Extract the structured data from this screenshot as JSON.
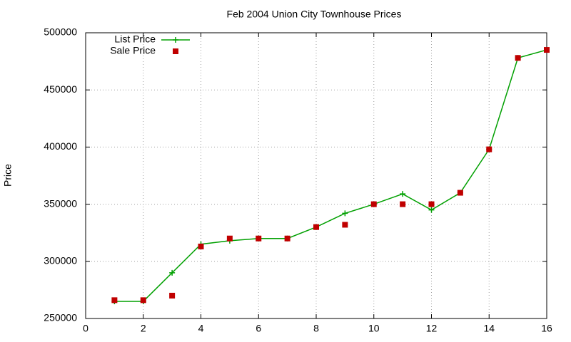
{
  "chart_data": {
    "type": "line",
    "title": "Feb 2004 Union City Townhouse Prices",
    "y_label": "Price",
    "x": [
      1,
      2,
      3,
      4,
      5,
      6,
      7,
      8,
      9,
      10,
      11,
      12,
      13,
      14,
      15,
      16
    ],
    "series": [
      {
        "name": "List Price",
        "color": "#00a000",
        "line": true,
        "marker": "plus",
        "values": [
          265000,
          265000,
          290000,
          315000,
          318000,
          320000,
          320000,
          330000,
          342000,
          350000,
          359000,
          345000,
          360000,
          398000,
          478000,
          485000
        ]
      },
      {
        "name": "Sale Price",
        "color": "#c00000",
        "line": false,
        "marker": "square",
        "values": [
          266000,
          266000,
          270000,
          313000,
          320000,
          320000,
          320000,
          330000,
          332000,
          350000,
          350000,
          350000,
          360000,
          398000,
          478000,
          485000
        ]
      }
    ],
    "xlim": [
      0,
      16
    ],
    "xticks": [
      0,
      2,
      4,
      6,
      8,
      10,
      12,
      14,
      16
    ],
    "ylim": [
      250000,
      500000
    ],
    "yticks": [
      250000,
      300000,
      350000,
      400000,
      450000,
      500000
    ],
    "grid": true,
    "legend": "top-left"
  }
}
